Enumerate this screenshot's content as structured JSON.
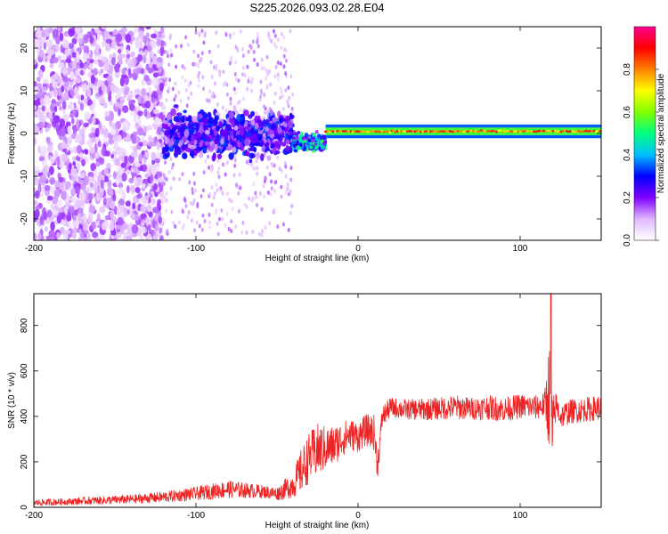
{
  "title": "S225.2026.093.02.28.E04",
  "chart_data": [
    {
      "type": "heatmap",
      "title": "S225.2026.093.02.28.E04",
      "xlabel": "Height of straight line (km)",
      "ylabel": "Frequency (Hz)",
      "xlim": [
        -200,
        150
      ],
      "ylim": [
        -25,
        25
      ],
      "x_ticks": [
        -200,
        -100,
        0,
        100
      ],
      "y_ticks": [
        -20,
        -10,
        0,
        10,
        20
      ],
      "grid": false,
      "colorbar": {
        "label": "Normalized spectral amplitude",
        "range": [
          0,
          1
        ],
        "ticks": [
          0.0,
          0.2,
          0.4,
          0.6,
          0.8
        ],
        "colormap": [
          "#ffffff",
          "#e0b8ff",
          "#7f00ff",
          "#0000ff",
          "#00c0ff",
          "#00ff80",
          "#80ff00",
          "#ffff00",
          "#ff8000",
          "#ff0000",
          "#ff0090"
        ]
      },
      "regions": [
        {
          "x_range": [
            -200,
            -120
          ],
          "freq_spread": 25,
          "amplitude": 0.12,
          "description": "scattered noise"
        },
        {
          "x_range": [
            -120,
            -40
          ],
          "freq_spread": 8,
          "amplitude": 0.2
        },
        {
          "x_range": [
            -40,
            -20
          ],
          "freq_center": -2,
          "amplitude": 0.4
        },
        {
          "x_range": [
            -20,
            150
          ],
          "freq_center": 0.5,
          "amplitude": 0.9,
          "description": "carrier line"
        }
      ]
    },
    {
      "type": "line",
      "xlabel": "Height of straight line (km)",
      "ylabel": "SNR (10 * v/v)",
      "xlim": [
        -200,
        150
      ],
      "ylim": [
        0,
        940
      ],
      "x_ticks": [
        -200,
        -100,
        0,
        100
      ],
      "y_ticks": [
        0,
        200,
        400,
        600,
        800
      ],
      "grid": false,
      "series": [
        {
          "name": "SNR",
          "color": "#ee2222",
          "x": [
            -200,
            -180,
            -160,
            -140,
            -120,
            -100,
            -90,
            -80,
            -70,
            -60,
            -50,
            -40,
            -35,
            -30,
            -25,
            -20,
            -15,
            -10,
            -5,
            0,
            5,
            10,
            12,
            15,
            20,
            30,
            40,
            50,
            60,
            70,
            80,
            90,
            100,
            110,
            115,
            118,
            120,
            122,
            125,
            130,
            140,
            150
          ],
          "y": [
            20,
            25,
            30,
            35,
            45,
            60,
            70,
            80,
            75,
            70,
            60,
            100,
            160,
            220,
            250,
            260,
            270,
            300,
            320,
            310,
            340,
            330,
            180,
            400,
            440,
            430,
            430,
            435,
            440,
            435,
            440,
            430,
            445,
            440,
            450,
            500,
            300,
            450,
            400,
            420,
            430,
            440
          ],
          "noise": [
            15,
            15,
            18,
            20,
            25,
            30,
            35,
            40,
            35,
            30,
            30,
            60,
            100,
            110,
            120,
            100,
            90,
            80,
            70,
            70,
            70,
            80,
            60,
            50,
            45,
            45,
            50,
            50,
            55,
            50,
            55,
            55,
            55,
            55,
            60,
            250,
            200,
            60,
            55,
            55,
            55,
            55
          ]
        }
      ],
      "annotations": [
        {
          "x": 119,
          "y": 940,
          "label": "spike"
        }
      ]
    }
  ]
}
